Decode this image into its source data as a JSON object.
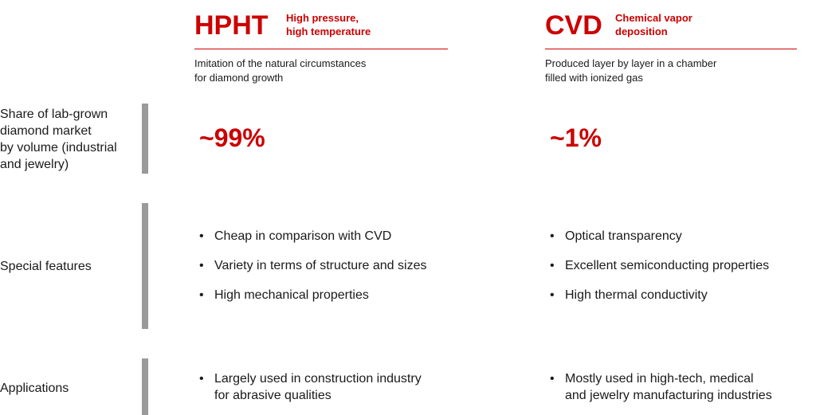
{
  "columns": [
    {
      "acronym": "HPHT",
      "full_name": [
        "High pressure,",
        "high temperature"
      ],
      "description": [
        "Imitation of the natural circumstances",
        "for diamond growth"
      ]
    },
    {
      "acronym": "CVD",
      "full_name": [
        "Chemical vapor",
        "deposition"
      ],
      "description": [
        "Produced layer by layer in a chamber",
        "filled with ionized gas"
      ]
    }
  ],
  "rows": [
    {
      "label": [
        "Share of lab-grown",
        "diamond market",
        "by volume (industrial",
        "and jewelry)"
      ],
      "cells": [
        [
          "~99%"
        ],
        [
          "~1%"
        ]
      ]
    },
    {
      "label": [
        "Special features"
      ],
      "cells": [
        [
          [
            "Cheap in comparison with CVD"
          ],
          [
            "Variety in terms of structure and sizes"
          ],
          [
            "High mechanical properties"
          ]
        ],
        [
          [
            "Optical transparency"
          ],
          [
            "Excellent semiconducting properties"
          ],
          [
            "High thermal conductivity"
          ]
        ]
      ]
    },
    {
      "label": [
        "Applications"
      ],
      "cells": [
        [
          [
            "Largely used in construction industry",
            "for abrasive qualities"
          ]
        ],
        [
          [
            "Mostly used in high-tech, medical",
            "and jewelry manufacturing industries"
          ]
        ]
      ]
    }
  ]
}
